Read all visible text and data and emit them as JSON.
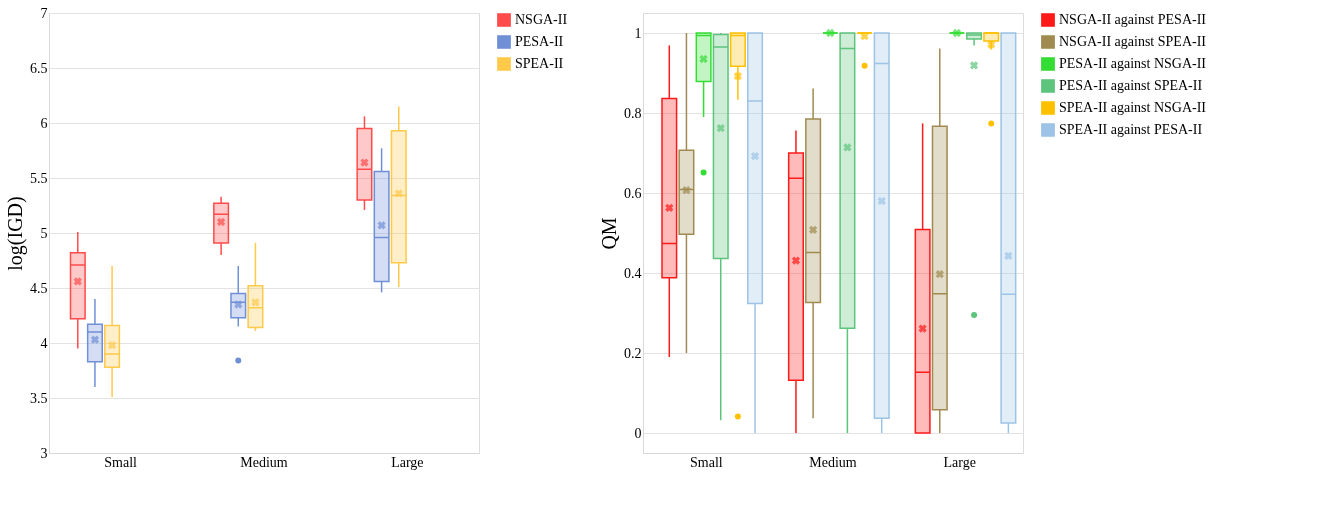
{
  "chart_data": [
    {
      "type": "box",
      "ylabel": "log(IGD)",
      "categories": [
        "Small",
        "Medium",
        "Large"
      ],
      "ylim": [
        3,
        7
      ],
      "yticks": [
        3,
        3.5,
        4,
        4.5,
        5,
        5.5,
        6,
        6.5,
        7
      ],
      "grid": "y",
      "legend": "right",
      "series": [
        {
          "name": "NSGA-II",
          "color": "#ff4b4b",
          "boxes": [
            {
              "low": 3.95,
              "q1": 4.22,
              "median": 4.71,
              "q3": 4.82,
              "high": 5.01,
              "mean": 4.56
            },
            {
              "low": 4.8,
              "q1": 4.91,
              "median": 5.17,
              "q3": 5.27,
              "high": 5.33,
              "mean": 5.1
            },
            {
              "low": 5.21,
              "q1": 5.3,
              "median": 5.58,
              "q3": 5.95,
              "high": 6.06,
              "mean": 5.64
            }
          ]
        },
        {
          "name": "PESA-II",
          "color": "#6f8fd6",
          "boxes": [
            {
              "low": 3.6,
              "q1": 3.83,
              "median": 4.1,
              "q3": 4.17,
              "high": 4.4,
              "mean": 4.03
            },
            {
              "low": 4.15,
              "q1": 4.23,
              "median": 4.37,
              "q3": 4.45,
              "high": 4.7,
              "mean": 4.35,
              "outliers": [
                3.84
              ]
            },
            {
              "low": 4.46,
              "q1": 4.56,
              "median": 4.96,
              "q3": 5.56,
              "high": 5.77,
              "mean": 5.07
            }
          ]
        },
        {
          "name": "SPEA-II",
          "color": "#ffc94a",
          "boxes": [
            {
              "low": 3.51,
              "q1": 3.78,
              "median": 3.9,
              "q3": 4.16,
              "high": 4.7,
              "mean": 3.98
            },
            {
              "low": 4.11,
              "q1": 4.14,
              "median": 4.32,
              "q3": 4.52,
              "high": 4.91,
              "mean": 4.37
            },
            {
              "low": 4.51,
              "q1": 4.73,
              "median": 5.34,
              "q3": 5.93,
              "high": 6.15,
              "mean": 5.36
            }
          ]
        }
      ]
    },
    {
      "type": "box",
      "ylabel": "QM",
      "categories": [
        "Small",
        "Medium",
        "Large"
      ],
      "ylim": [
        -0.05,
        1.05
      ],
      "yticks": [
        0,
        0.2,
        0.4,
        0.6,
        0.8,
        1
      ],
      "grid": "y",
      "legend": "right",
      "series": [
        {
          "name": "NSGA-II against  PESA-II",
          "color": "#ff1a1a",
          "boxes": [
            {
              "low": 0.19,
              "q1": 0.388,
              "median": 0.474,
              "q3": 0.836,
              "high": 0.969,
              "mean": 0.563
            },
            {
              "low": 0,
              "q1": 0.132,
              "median": 0.637,
              "q3": 0.7,
              "high": 0.756,
              "mean": 0.431
            },
            {
              "low": 0,
              "q1": 0,
              "median": 0.152,
              "q3": 0.509,
              "high": 0.774,
              "mean": 0.261
            }
          ]
        },
        {
          "name": "NSGA-II against SPEA-II",
          "color": "#a08a50",
          "boxes": [
            {
              "low": 0.2,
              "q1": 0.497,
              "median": 0.609,
              "q3": 0.707,
              "high": 1,
              "mean": 0.607
            },
            {
              "low": 0.037,
              "q1": 0.326,
              "median": 0.451,
              "q3": 0.785,
              "high": 0.861,
              "mean": 0.508
            },
            {
              "low": 0,
              "q1": 0.058,
              "median": 0.348,
              "q3": 0.767,
              "high": 0.961,
              "mean": 0.397
            }
          ]
        },
        {
          "name": "PESA-II against NSGA-II",
          "color": "#33dd33",
          "boxes": [
            {
              "low": 0.79,
              "q1": 0.879,
              "median": 0.994,
              "q3": 1,
              "high": 1,
              "mean": 0.935,
              "outliers": [
                0.651
              ]
            },
            {
              "low": 1,
              "q1": 1,
              "median": 1,
              "q3": 1,
              "high": 1,
              "mean": 1
            },
            {
              "low": 1,
              "q1": 1,
              "median": 1,
              "q3": 1,
              "high": 1,
              "mean": 1
            }
          ]
        },
        {
          "name": "PESA-II against SPEA-II",
          "color": "#5cc47c",
          "boxes": [
            {
              "low": 0.032,
              "q1": 0.436,
              "median": 0.965,
              "q3": 0.996,
              "high": 1,
              "mean": 0.762
            },
            {
              "low": 0,
              "q1": 0.262,
              "median": 0.961,
              "q3": 1,
              "high": 1,
              "mean": 0.714
            },
            {
              "low": 0.969,
              "q1": 0.985,
              "median": 0.995,
              "q3": 1,
              "high": 1,
              "mean": 0.919,
              "outliers": [
                0.295
              ]
            }
          ]
        },
        {
          "name": "SPEA-II against NSGA-II",
          "color": "#ffc000",
          "boxes": [
            {
              "low": 0.833,
              "q1": 0.917,
              "median": 0.994,
              "q3": 1,
              "high": 1,
              "mean": 0.892,
              "outliers": [
                0.041
              ]
            },
            {
              "low": 1,
              "q1": 1,
              "median": 1,
              "q3": 1,
              "high": 1,
              "mean": 0.992,
              "outliers": [
                0.918
              ]
            },
            {
              "low": 0.959,
              "q1": 0.98,
              "median": 1,
              "q3": 1,
              "high": 1,
              "mean": 0.971,
              "outliers": [
                0.774
              ]
            }
          ]
        },
        {
          "name": "SPEA-II against PESA-II",
          "color": "#9dc3e6",
          "boxes": [
            {
              "low": 0,
              "q1": 0.324,
              "median": 0.83,
              "q3": 1,
              "high": 1,
              "mean": 0.692
            },
            {
              "low": 0,
              "q1": 0.037,
              "median": 0.924,
              "q3": 1,
              "high": 1,
              "mean": 0.58
            },
            {
              "low": 0,
              "q1": 0.025,
              "median": 0.347,
              "q3": 1,
              "high": 1,
              "mean": 0.443
            }
          ]
        }
      ]
    }
  ]
}
